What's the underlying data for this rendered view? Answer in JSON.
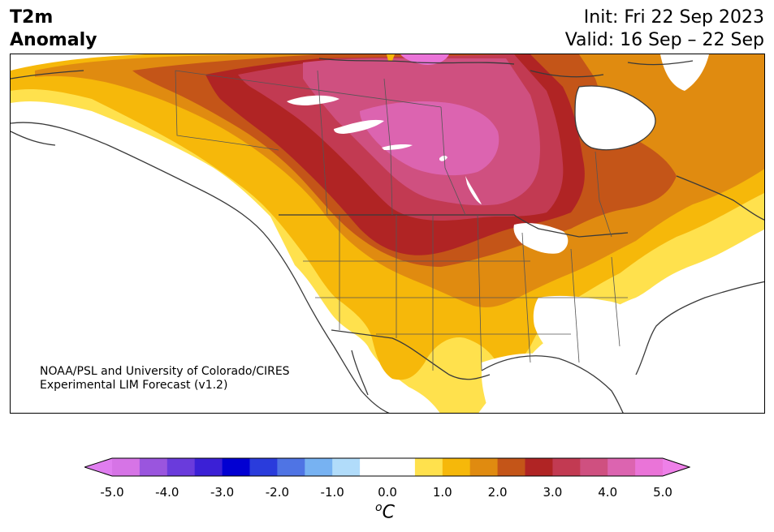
{
  "title": {
    "left_line1": "T2m",
    "left_line2": "Anomaly",
    "init": "Init: Fri 22 Sep 2023",
    "valid": "Valid: 16 Sep – 22 Sep"
  },
  "credit": {
    "line1": "NOAA/PSL and University of Colorado/CIRES",
    "line2": "Experimental LIM Forecast (v1.2)"
  },
  "colorbar": {
    "ticks": [
      "-5.0",
      "-4.0",
      "-3.0",
      "-2.0",
      "-1.0",
      "0.0",
      "1.0",
      "2.0",
      "3.0",
      "4.0",
      "5.0"
    ],
    "unit_base": "C",
    "unit_sup": "o",
    "colors": [
      "#d674e6",
      "#9a55de",
      "#6a3bdc",
      "#3b20d6",
      "#0200d2",
      "#2a3cdc",
      "#4f74e4",
      "#77b2f2",
      "#b1dcfa",
      "#ffffff",
      "#ffffff",
      "#ffe14d",
      "#f6b80a",
      "#e08b10",
      "#c45518",
      "#b02424",
      "#c23a52",
      "#cf5080",
      "#dc64b0",
      "#ea74d8"
    ],
    "under_color": "#e07ef0",
    "over_color": "#ee80e8"
  },
  "map": {
    "region": "North America",
    "anomaly_colors": {
      "c1": "#ffe14d",
      "c2": "#f6b80a",
      "c3": "#e08b10",
      "c4": "#c45518",
      "c5": "#b02424",
      "c6": "#c23a52",
      "c7": "#cf5080",
      "c8": "#dc64b0"
    }
  }
}
